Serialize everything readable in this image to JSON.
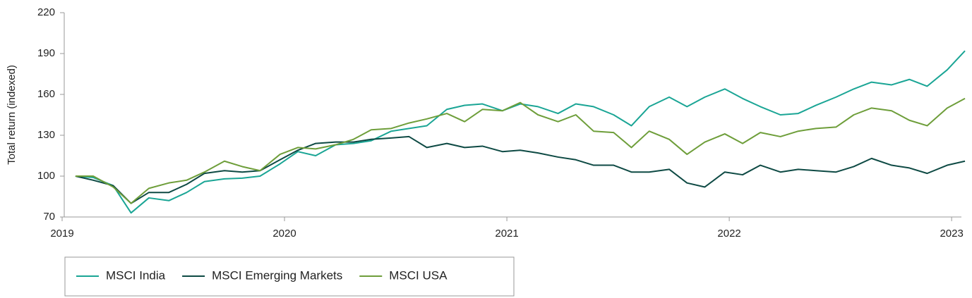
{
  "chart_data": {
    "type": "line",
    "y_label": "Total return (indexed)",
    "x": [
      2019.06,
      2019.14,
      2019.23,
      2019.31,
      2019.39,
      2019.48,
      2019.56,
      2019.64,
      2019.73,
      2019.81,
      2019.89,
      2019.98,
      2020.06,
      2020.14,
      2020.23,
      2020.31,
      2020.39,
      2020.48,
      2020.56,
      2020.64,
      2020.73,
      2020.81,
      2020.89,
      2020.98,
      2021.06,
      2021.14,
      2021.23,
      2021.31,
      2021.39,
      2021.48,
      2021.56,
      2021.64,
      2021.73,
      2021.81,
      2021.89,
      2021.98,
      2022.06,
      2022.14,
      2022.23,
      2022.31,
      2022.39,
      2022.48,
      2022.56,
      2022.64,
      2022.73,
      2022.81,
      2022.89,
      2022.98,
      2023.06
    ],
    "series": [
      {
        "name": "MSCI India",
        "color": "#1aa595",
        "values": [
          100,
          99,
          93,
          73,
          84,
          82,
          88,
          96,
          98,
          98.5,
          100,
          109,
          118,
          115,
          123,
          124,
          126,
          133,
          135,
          137,
          149,
          152,
          153,
          148,
          153,
          151,
          146,
          153,
          151,
          145,
          137,
          151,
          158,
          151,
          158,
          164,
          157,
          151,
          145,
          146,
          152,
          158,
          164,
          169,
          167,
          171,
          166,
          178,
          192
        ]
      },
      {
        "name": "MSCI Emerging Markets",
        "color": "#0e4a44",
        "values": [
          100,
          97,
          93,
          80,
          88,
          88,
          94,
          102,
          104,
          103,
          104,
          112,
          119,
          124,
          125,
          125,
          127,
          128,
          129,
          121,
          124,
          121,
          122,
          118,
          119,
          117,
          114,
          112,
          108,
          108,
          103,
          103,
          105,
          95,
          92,
          103,
          101,
          108,
          103,
          105,
          104,
          103,
          107,
          113,
          108,
          106,
          102,
          108,
          111
        ]
      },
      {
        "name": "MSCI USA",
        "color": "#6e9e3a",
        "values": [
          100,
          100,
          92,
          80,
          91,
          95,
          97,
          103,
          111,
          107,
          104,
          116,
          121,
          120,
          123,
          127,
          134,
          135,
          139,
          142,
          146,
          140,
          149,
          148,
          154,
          145,
          140,
          145,
          133,
          132,
          121,
          133,
          127,
          116,
          125,
          131,
          124,
          132,
          129,
          133,
          135,
          136,
          145,
          150,
          148,
          141,
          137,
          150,
          157
        ]
      }
    ],
    "xlim": [
      2019,
      2023.044
    ],
    "xticks": [
      2019,
      2020,
      2021,
      2022,
      2023
    ],
    "ylim": [
      70,
      220
    ],
    "yticks": [
      70,
      100,
      130,
      160,
      190,
      220
    ]
  }
}
